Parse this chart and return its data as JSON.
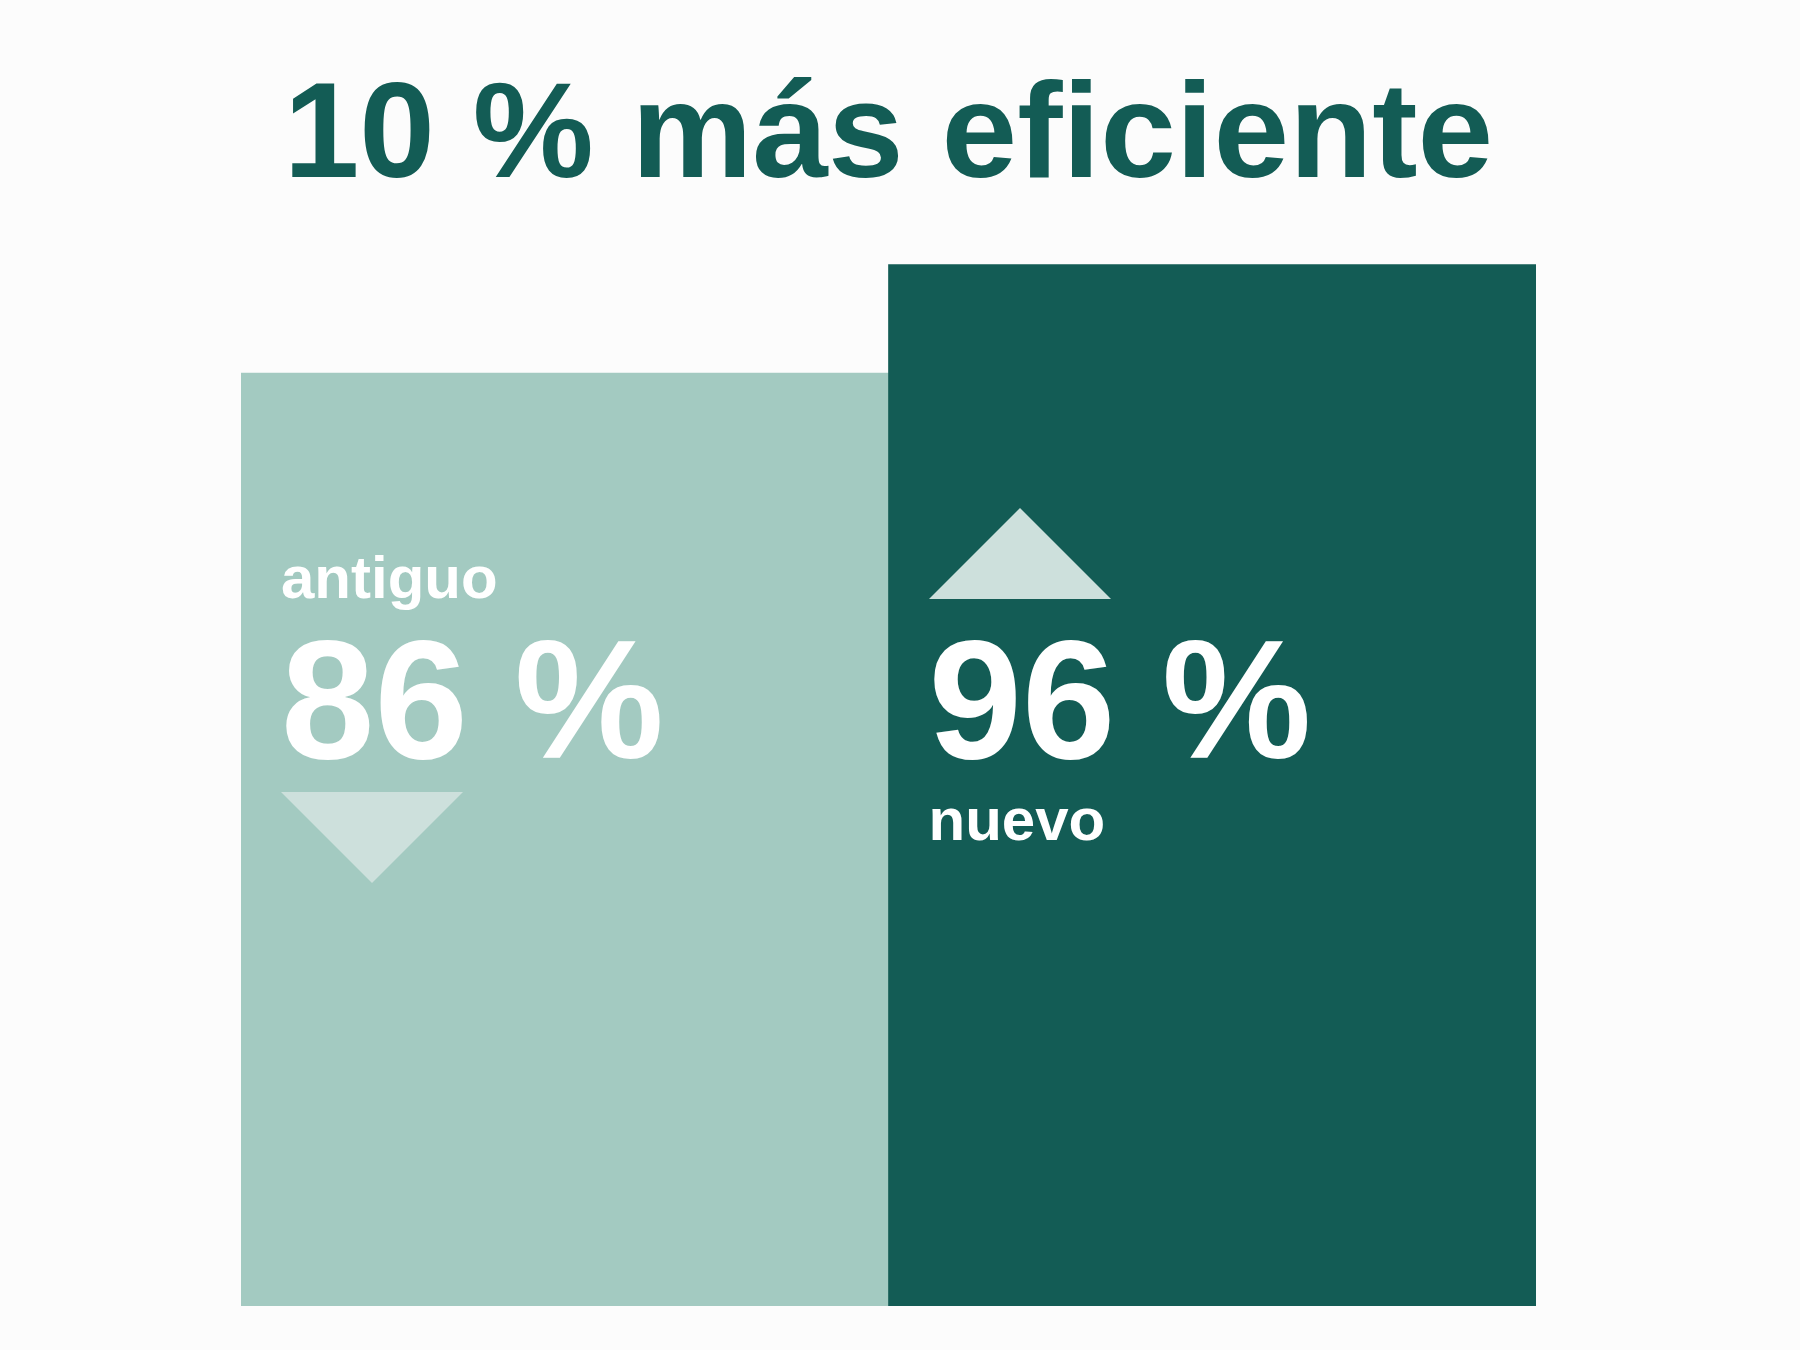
{
  "chart_data": {
    "type": "bar",
    "title": "10 % más eficiente",
    "categories": [
      "antiguo",
      "nuevo"
    ],
    "values": [
      86,
      96
    ],
    "colors": [
      "#a3cac1",
      "#135c55"
    ],
    "value_labels": [
      "86 %",
      "96 %"
    ],
    "tick_labels": "x"
  }
}
